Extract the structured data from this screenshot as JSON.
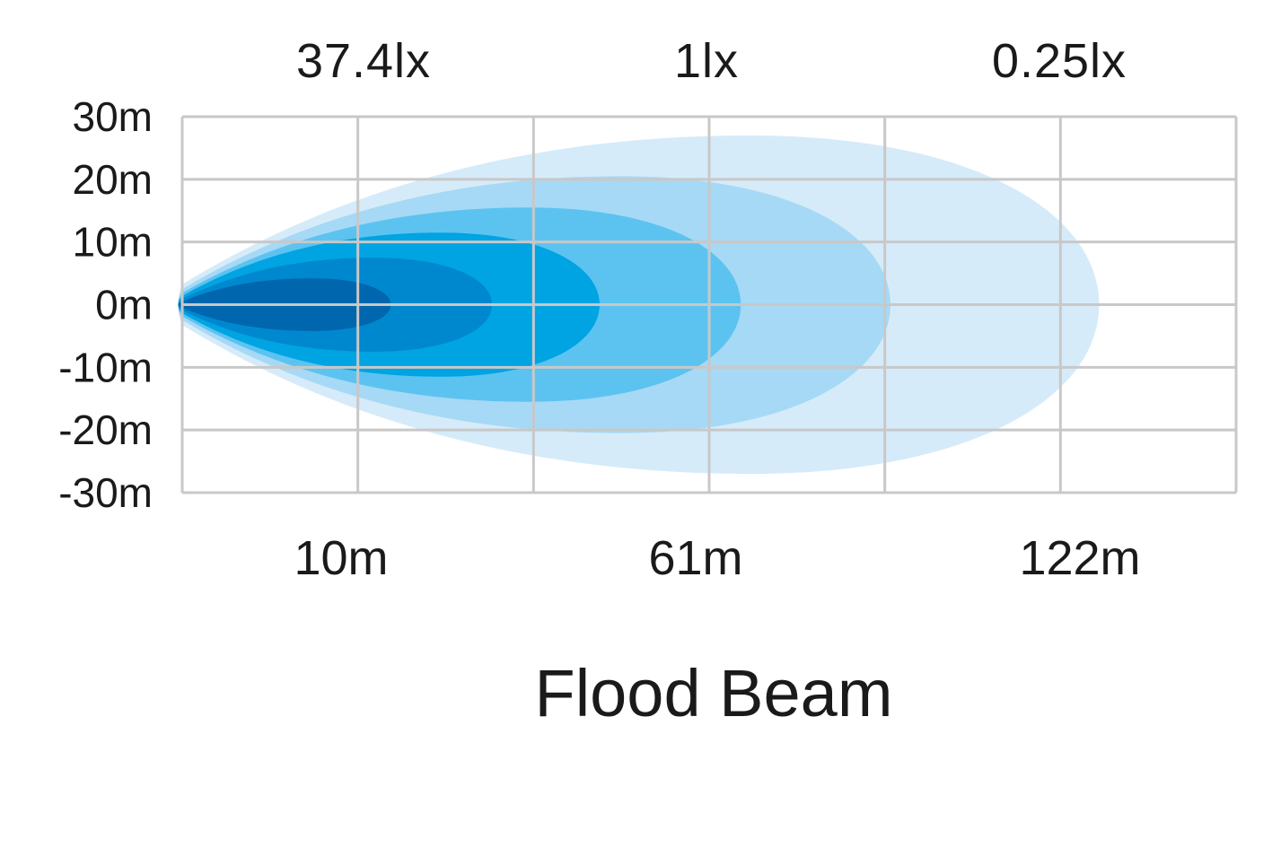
{
  "chart_data": {
    "type": "area",
    "title": "Flood Beam",
    "y_ticks": [
      "30m",
      "20m",
      "10m",
      "0m",
      "-10m",
      "-20m",
      "-30m"
    ],
    "y_values": [
      30,
      20,
      10,
      0,
      -10,
      -20,
      -30
    ],
    "ylim": [
      -30,
      30
    ],
    "x_tick_labels": [
      "10m",
      "61m",
      "122m"
    ],
    "lux_labels": [
      "37.4lx",
      "1lx",
      "0.25lx"
    ],
    "grid": true,
    "grid_columns": 6,
    "beam_zones": [
      {
        "reach_fraction": 0.87,
        "half_width_m": 27,
        "color": "#d6ebf9"
      },
      {
        "reach_fraction": 0.672,
        "half_width_m": 20.5,
        "color": "#a6d9f5"
      },
      {
        "reach_fraction": 0.53,
        "half_width_m": 15.5,
        "color": "#5cc3f0"
      },
      {
        "reach_fraction": 0.396,
        "half_width_m": 11.5,
        "color": "#00a4e2"
      },
      {
        "reach_fraction": 0.294,
        "half_width_m": 7.5,
        "color": "#0088cf"
      },
      {
        "reach_fraction": 0.198,
        "half_width_m": 4.2,
        "color": "#0066ad"
      }
    ]
  }
}
